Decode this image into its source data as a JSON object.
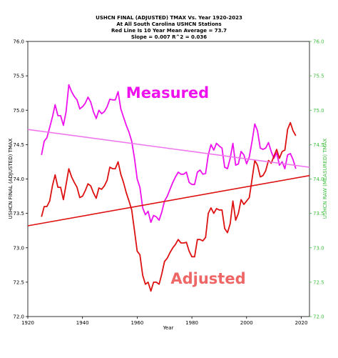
{
  "chart_data": {
    "type": "line",
    "title_lines": [
      "USHCN FINAL (ADJUSTED) TMAX Vs. Year 1920-2023",
      "At All South Carolina USHCN Stations",
      "Red Line Is 10 Year Mean  Average = 73.7",
      "Slope = 0.007   R^2 = 0.036"
    ],
    "xlabel": "Year",
    "ylabel_left": "USHCN FINAL (ADJUSTED) TMAX",
    "ylabel_right": "USHCN RAW (MEASURED) TMAX",
    "xlim": [
      1920,
      2023
    ],
    "ylim": [
      72.0,
      76.0
    ],
    "xticks": [
      "1920",
      "1940",
      "1960",
      "1980",
      "2000",
      "2020"
    ],
    "yticks_left": [
      "72.0",
      "72.5",
      "73.0",
      "73.5",
      "74.0",
      "74.5",
      "75.0",
      "75.5",
      "76.0"
    ],
    "yticks_right": [
      "72.0",
      "72.5",
      "73.0",
      "73.5",
      "74.0",
      "74.5",
      "75.0",
      "75.5",
      "76.0"
    ],
    "grid": false,
    "annotations": [
      {
        "text": "Measured",
        "color": "#ee11ee"
      },
      {
        "text": "Adjusted",
        "color": "#ee6666"
      }
    ],
    "series": [
      {
        "color": "#ee11ee",
        "x": [
          1925,
          1926,
          1927,
          1928,
          1929,
          1930,
          1931,
          1932,
          1933,
          1934,
          1935,
          1936,
          1937,
          1938,
          1939,
          1940,
          1941,
          1942,
          1943,
          1944,
          1945,
          1946,
          1947,
          1948,
          1949,
          1950,
          1951,
          1952,
          1953,
          1954,
          1955,
          1956,
          1957,
          1958,
          1959,
          1960,
          1961,
          1962,
          1963,
          1964,
          1965,
          1966,
          1967,
          1968,
          1969,
          1970,
          1971,
          1972,
          1973,
          1974,
          1975,
          1976,
          1977,
          1978,
          1979,
          1980,
          1981,
          1982,
          1983,
          1984,
          1985,
          1986,
          1987,
          1988,
          1989,
          1990,
          1991,
          1992,
          1993,
          1994,
          1995,
          1996,
          1997,
          1998,
          1999,
          2000,
          2001,
          2002,
          2003,
          2004,
          2005,
          2006,
          2007,
          2008,
          2009,
          2010,
          2011,
          2012,
          2013,
          2014,
          2015,
          2016,
          2017,
          2018
        ],
        "values": [
          74.35,
          74.55,
          74.6,
          74.75,
          74.9,
          75.08,
          74.92,
          74.92,
          74.78,
          74.98,
          75.37,
          75.27,
          75.2,
          75.15,
          75.02,
          75.05,
          75.1,
          75.19,
          75.12,
          74.98,
          74.88,
          75.0,
          74.95,
          74.98,
          75.05,
          75.16,
          75.15,
          75.15,
          75.27,
          75.02,
          74.9,
          74.78,
          74.68,
          74.55,
          74.3,
          74.0,
          73.88,
          73.58,
          73.48,
          73.53,
          73.37,
          73.47,
          73.45,
          73.4,
          73.52,
          73.68,
          73.75,
          73.85,
          73.95,
          74.03,
          74.1,
          74.07,
          74.07,
          74.1,
          73.95,
          73.92,
          73.92,
          74.1,
          74.13,
          74.07,
          74.08,
          74.35,
          74.5,
          74.42,
          74.52,
          74.48,
          74.45,
          74.17,
          74.15,
          74.3,
          74.52,
          74.2,
          74.22,
          74.4,
          74.35,
          74.22,
          74.32,
          74.55,
          74.8,
          74.7,
          74.45,
          74.43,
          74.45,
          74.53,
          74.4,
          74.3,
          74.38,
          74.2,
          74.25,
          74.15,
          74.35,
          74.37,
          74.28,
          74.15
        ]
      },
      {
        "color": "#dd1111",
        "x": [
          1925,
          1926,
          1927,
          1928,
          1929,
          1930,
          1931,
          1932,
          1933,
          1934,
          1935,
          1936,
          1937,
          1938,
          1939,
          1940,
          1941,
          1942,
          1943,
          1944,
          1945,
          1946,
          1947,
          1948,
          1949,
          1950,
          1951,
          1952,
          1953,
          1954,
          1955,
          1956,
          1957,
          1958,
          1959,
          1960,
          1961,
          1962,
          1963,
          1964,
          1965,
          1966,
          1967,
          1968,
          1969,
          1970,
          1971,
          1972,
          1973,
          1974,
          1975,
          1976,
          1977,
          1978,
          1979,
          1980,
          1981,
          1982,
          1983,
          1984,
          1985,
          1986,
          1987,
          1988,
          1989,
          1990,
          1991,
          1992,
          1993,
          1994,
          1995,
          1996,
          1997,
          1998,
          1999,
          2000,
          2001,
          2002,
          2003,
          2004,
          2005,
          2006,
          2007,
          2008,
          2009,
          2010,
          2011,
          2012,
          2013,
          2014,
          2015,
          2016,
          2017,
          2018
        ],
        "values": [
          73.45,
          73.6,
          73.6,
          73.68,
          73.9,
          74.06,
          73.88,
          73.88,
          73.7,
          73.92,
          74.15,
          74.03,
          73.95,
          73.88,
          73.73,
          73.75,
          73.83,
          73.93,
          73.9,
          73.8,
          73.72,
          73.87,
          73.85,
          73.9,
          73.98,
          74.17,
          74.15,
          74.15,
          74.25,
          74.07,
          73.95,
          73.8,
          73.68,
          73.55,
          73.25,
          72.95,
          72.9,
          72.6,
          72.47,
          72.5,
          72.37,
          72.5,
          72.5,
          72.47,
          72.62,
          72.8,
          72.85,
          72.93,
          73.0,
          73.05,
          73.12,
          73.07,
          73.07,
          73.08,
          72.95,
          72.87,
          72.87,
          73.12,
          73.12,
          73.1,
          73.15,
          73.5,
          73.58,
          73.5,
          73.57,
          73.55,
          73.55,
          73.28,
          73.22,
          73.35,
          73.68,
          73.4,
          73.5,
          73.7,
          73.63,
          73.68,
          73.73,
          74.0,
          74.27,
          74.2,
          74.03,
          74.05,
          74.12,
          74.27,
          74.23,
          74.33,
          74.43,
          74.3,
          74.4,
          74.42,
          74.72,
          74.82,
          74.7,
          74.63
        ]
      },
      {
        "color": "#ee77ee",
        "x": [
          1920,
          2023
        ],
        "values": [
          74.72,
          74.17
        ]
      },
      {
        "color": "#dd1111",
        "x": [
          1920,
          2023
        ],
        "values": [
          73.32,
          74.05
        ]
      }
    ]
  }
}
